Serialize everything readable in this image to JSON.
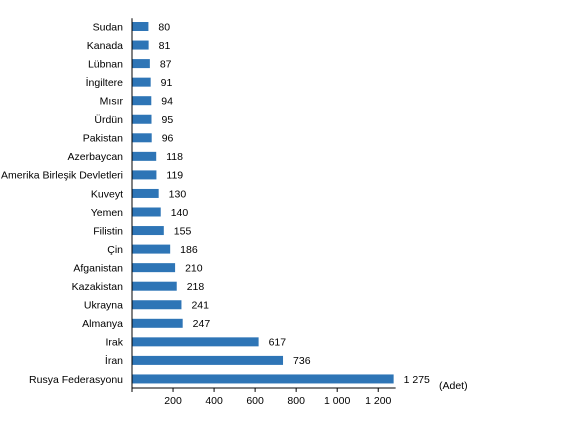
{
  "chart_data": {
    "type": "bar",
    "orientation": "horizontal",
    "title": "",
    "xlabel": "",
    "ylabel": "",
    "unit_label": "(Adet)",
    "categories": [
      "Sudan",
      "Kanada",
      "Lübnan",
      "İngiltere",
      "Mısır",
      "Ürdün",
      "Pakistan",
      "Azerbaycan",
      "Amerika Birleşik Devletleri",
      "Kuveyt",
      "Yemen",
      "Filistin",
      "Çin",
      "Afganistan",
      "Kazakistan",
      "Ukrayna",
      "Almanya",
      "Irak",
      "İran",
      "Rusya Federasyonu"
    ],
    "values": [
      80,
      81,
      87,
      91,
      94,
      95,
      96,
      118,
      119,
      130,
      140,
      155,
      186,
      210,
      218,
      241,
      247,
      617,
      736,
      1275
    ],
    "value_labels": [
      "80",
      "81",
      "87",
      "91",
      "94",
      "95",
      "96",
      "118",
      "119",
      "130",
      "140",
      "155",
      "186",
      "210",
      "218",
      "241",
      "247",
      "617",
      "736",
      "1 275"
    ],
    "xlim": [
      0,
      1275
    ],
    "x_ticks": [
      200,
      400,
      600,
      800,
      1000,
      1200
    ],
    "x_tick_labels": [
      "200",
      "400",
      "600",
      "800",
      "1 000",
      "1 200"
    ],
    "bar_color": "#2e75b6",
    "grid": false,
    "legend": "none"
  }
}
